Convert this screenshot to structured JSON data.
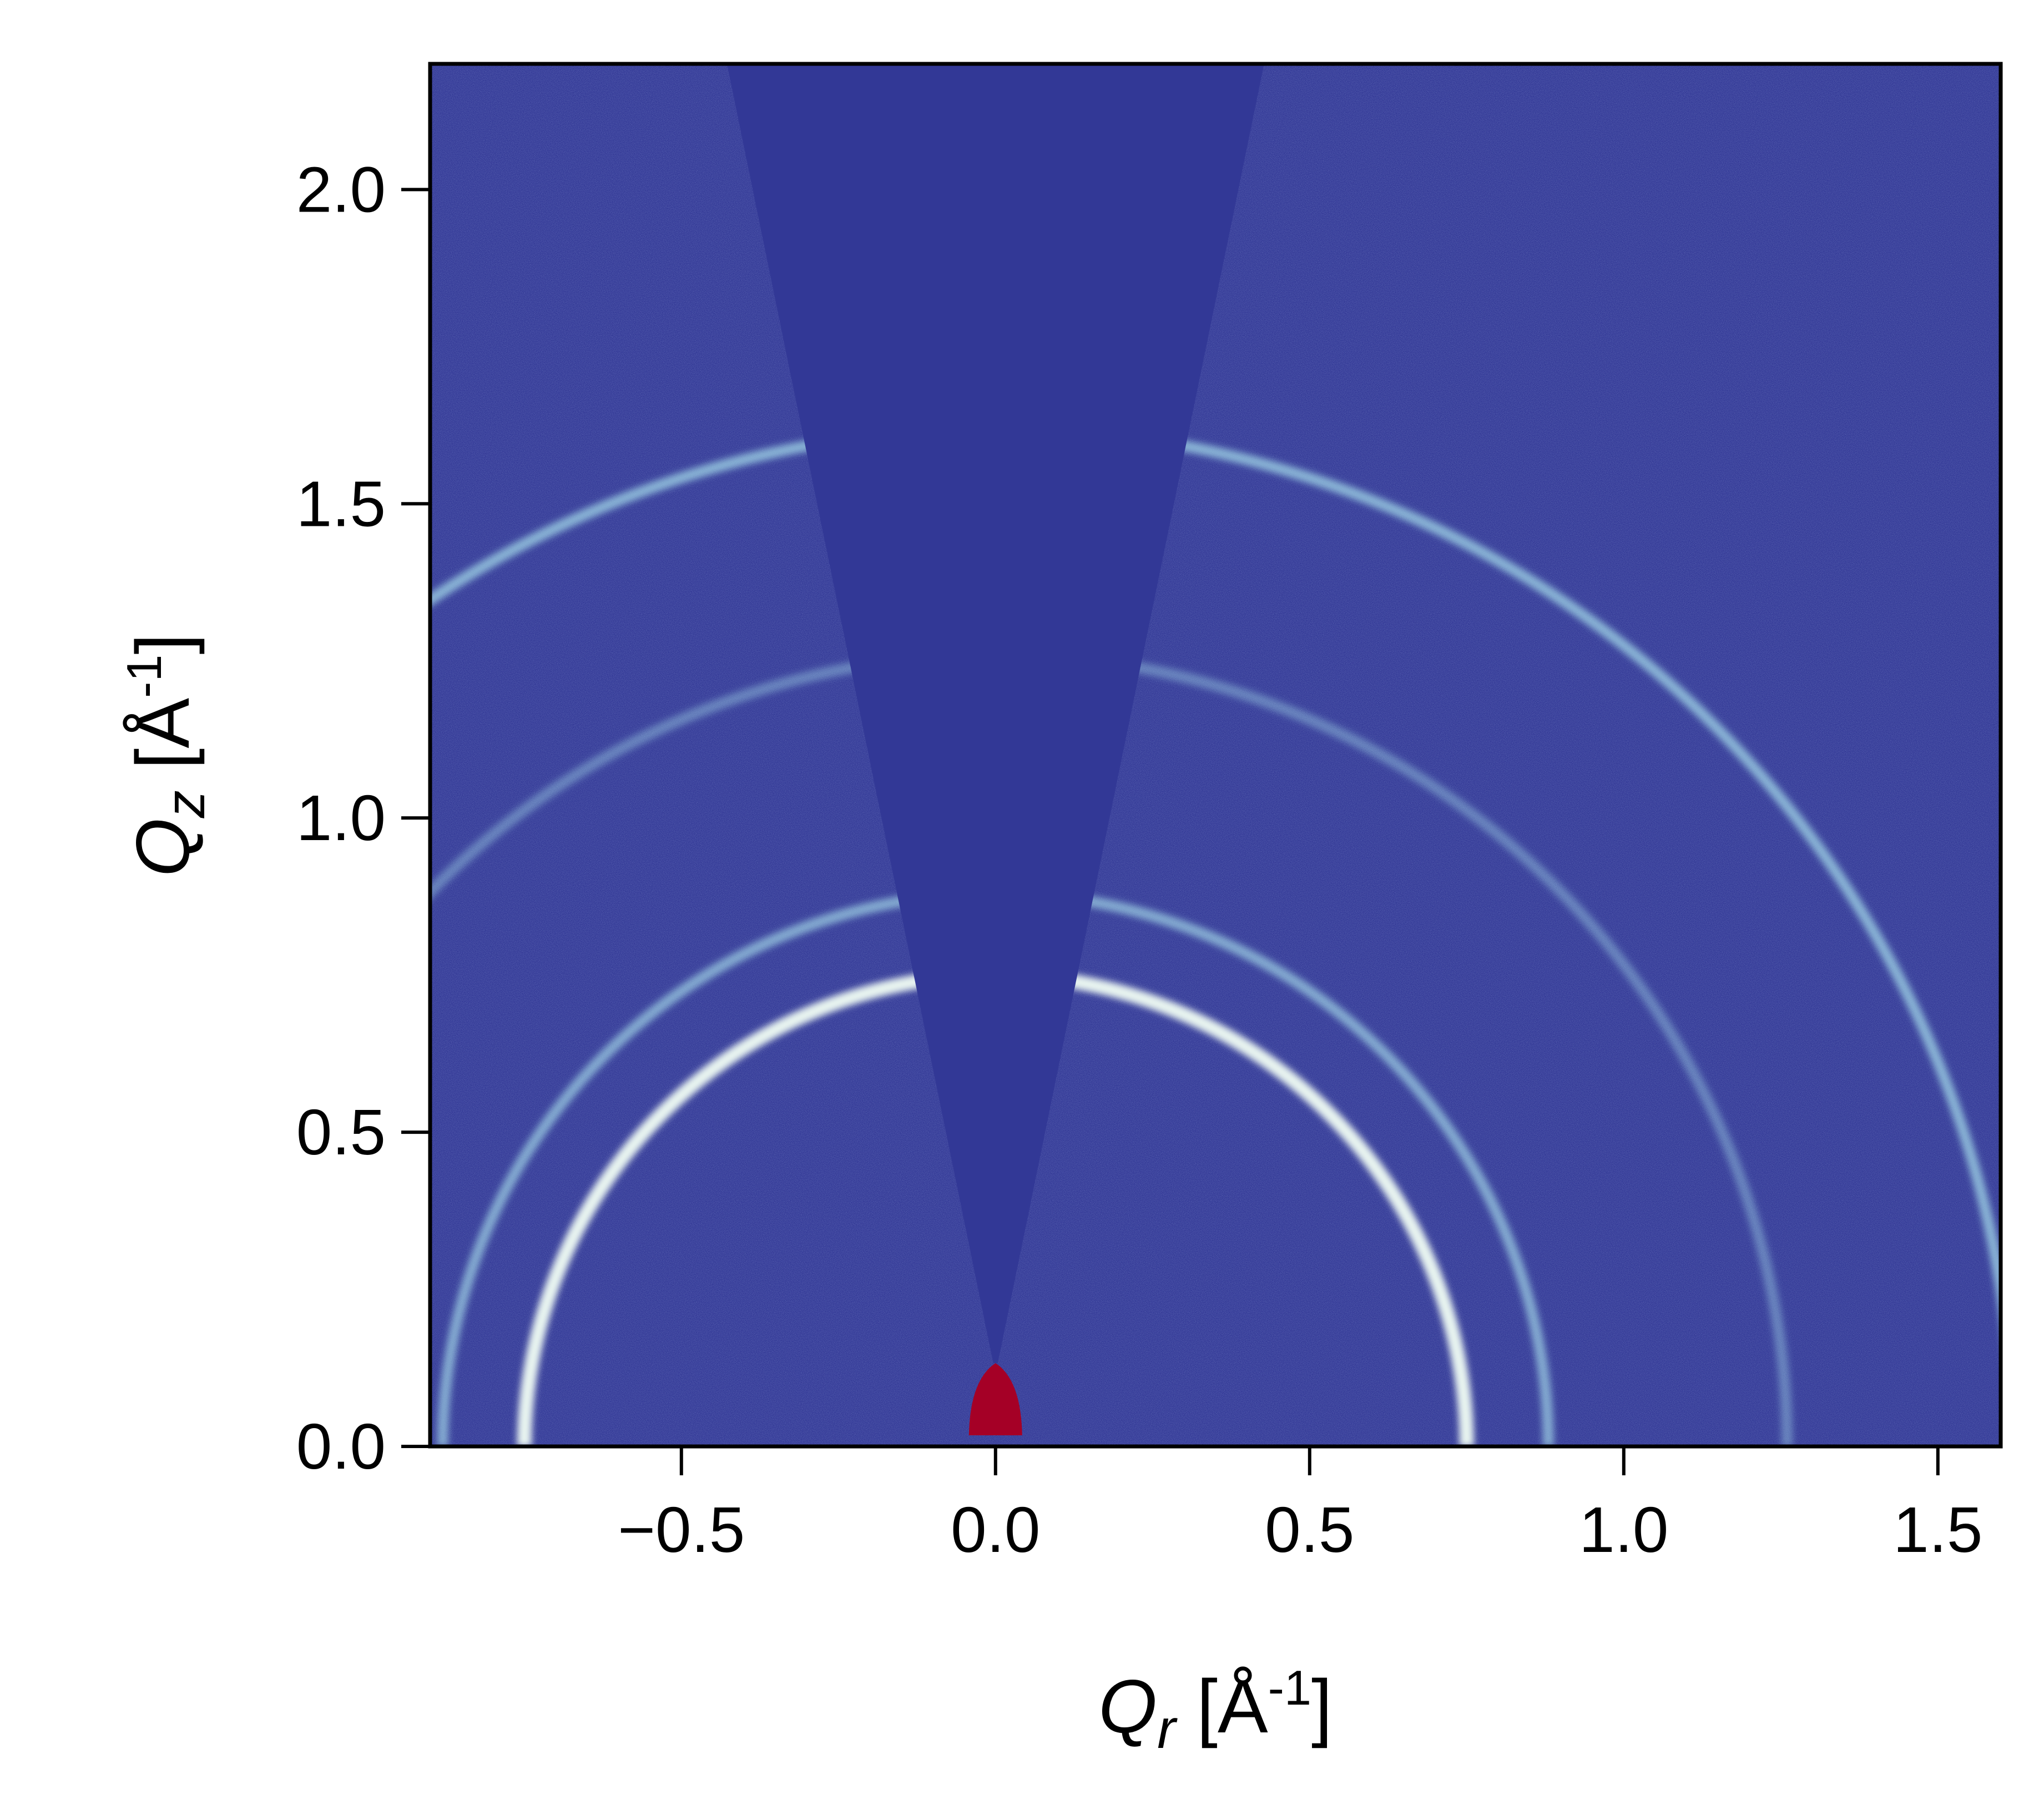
{
  "chart_data": {
    "type": "heatmap",
    "title": "",
    "xlabel": {
      "symbol": "Q",
      "sub": "r",
      "unit_open": " [Å",
      "unit_sup": "-1",
      "unit_close": "]"
    },
    "ylabel": {
      "symbol": "Q",
      "sub": "z",
      "unit_open": " [Å",
      "unit_sup": "-1",
      "unit_close": "]"
    },
    "xlim": [
      -0.9,
      1.6
    ],
    "ylim": [
      0.0,
      2.2
    ],
    "xticks": [
      -0.5,
      0.0,
      0.5,
      1.0,
      1.5
    ],
    "xtick_labels": [
      "−0.5",
      "0.0",
      "0.5",
      "1.0",
      "1.5"
    ],
    "yticks": [
      0.0,
      0.5,
      1.0,
      1.5,
      2.0
    ],
    "ytick_labels": [
      "0.0",
      "0.5",
      "1.0",
      "1.5",
      "2.0"
    ],
    "background_color": "#323896",
    "beam_color": "#a50026",
    "rings": [
      {
        "q": 0.75,
        "intensity": 1.0
      },
      {
        "q": 0.88,
        "intensity": 0.6
      },
      {
        "q": 1.26,
        "intensity": 0.25
      },
      {
        "q": 1.62,
        "intensity": 0.7
      }
    ],
    "wedge_half_angle_deg": 11,
    "grid": false,
    "legend": "none"
  }
}
